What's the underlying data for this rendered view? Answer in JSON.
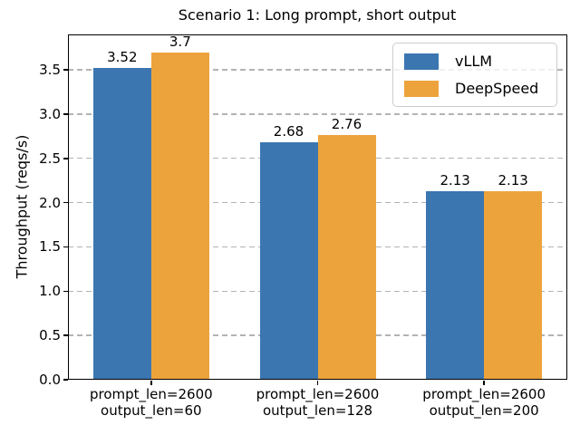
{
  "chart_data": {
    "type": "bar",
    "title": "Scenario 1: Long prompt, short output",
    "ylabel": "Throughput (reqs/s)",
    "xlabel": "",
    "categories": [
      "prompt_len=2600\noutput_len=60",
      "prompt_len=2600\noutput_len=128",
      "prompt_len=2600\noutput_len=200"
    ],
    "series": [
      {
        "name": "vLLM",
        "color": "#3b76b0",
        "values": [
          3.52,
          2.68,
          2.13
        ]
      },
      {
        "name": "DeepSpeed",
        "color": "#eda33c",
        "values": [
          3.7,
          2.76,
          2.13
        ]
      }
    ],
    "bar_value_labels": [
      [
        "3.52",
        "2.68",
        "2.13"
      ],
      [
        "3.7",
        "2.76",
        "2.13"
      ]
    ],
    "ylim": [
      0,
      3.9
    ],
    "yticks": [
      "0.0",
      "0.5",
      "1.0",
      "1.5",
      "2.0",
      "2.5",
      "3.0",
      "3.5"
    ],
    "grid": "horizontal-dashed",
    "legend_position": "upper right"
  }
}
